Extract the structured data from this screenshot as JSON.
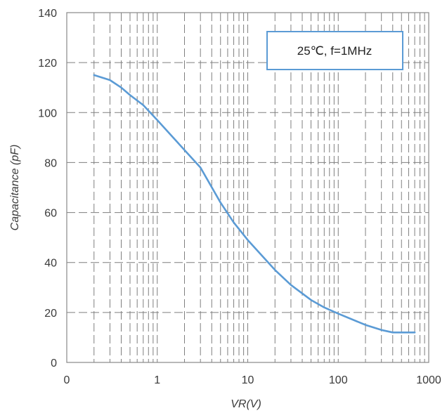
{
  "chart_data": {
    "type": "line",
    "title": "",
    "xlabel": "VR(V)",
    "ylabel": "Capacitance (pF)",
    "x_scale": "log",
    "xlim": [
      0.1,
      1000
    ],
    "ylim": [
      0,
      140
    ],
    "x_tick_labels": [
      "0",
      "1",
      "10",
      "100",
      "1000"
    ],
    "y_ticks": [
      0,
      20,
      40,
      60,
      80,
      100,
      120,
      140
    ],
    "grid": {
      "major_y": true,
      "minor_x_dashed": true
    },
    "annotation": "25℃, f=1MHz",
    "series": [
      {
        "color": "#5b9bd5",
        "x": [
          0.2,
          0.3,
          0.4,
          0.5,
          0.7,
          1,
          1.5,
          2,
          3,
          5,
          7,
          10,
          20,
          30,
          50,
          70,
          100,
          200,
          300,
          400,
          500,
          700
        ],
        "y": [
          115,
          113,
          110,
          107,
          103,
          97,
          90,
          85,
          78,
          64,
          56,
          49,
          37,
          31,
          25,
          22,
          19.5,
          15,
          13,
          12,
          12,
          12
        ]
      }
    ]
  }
}
